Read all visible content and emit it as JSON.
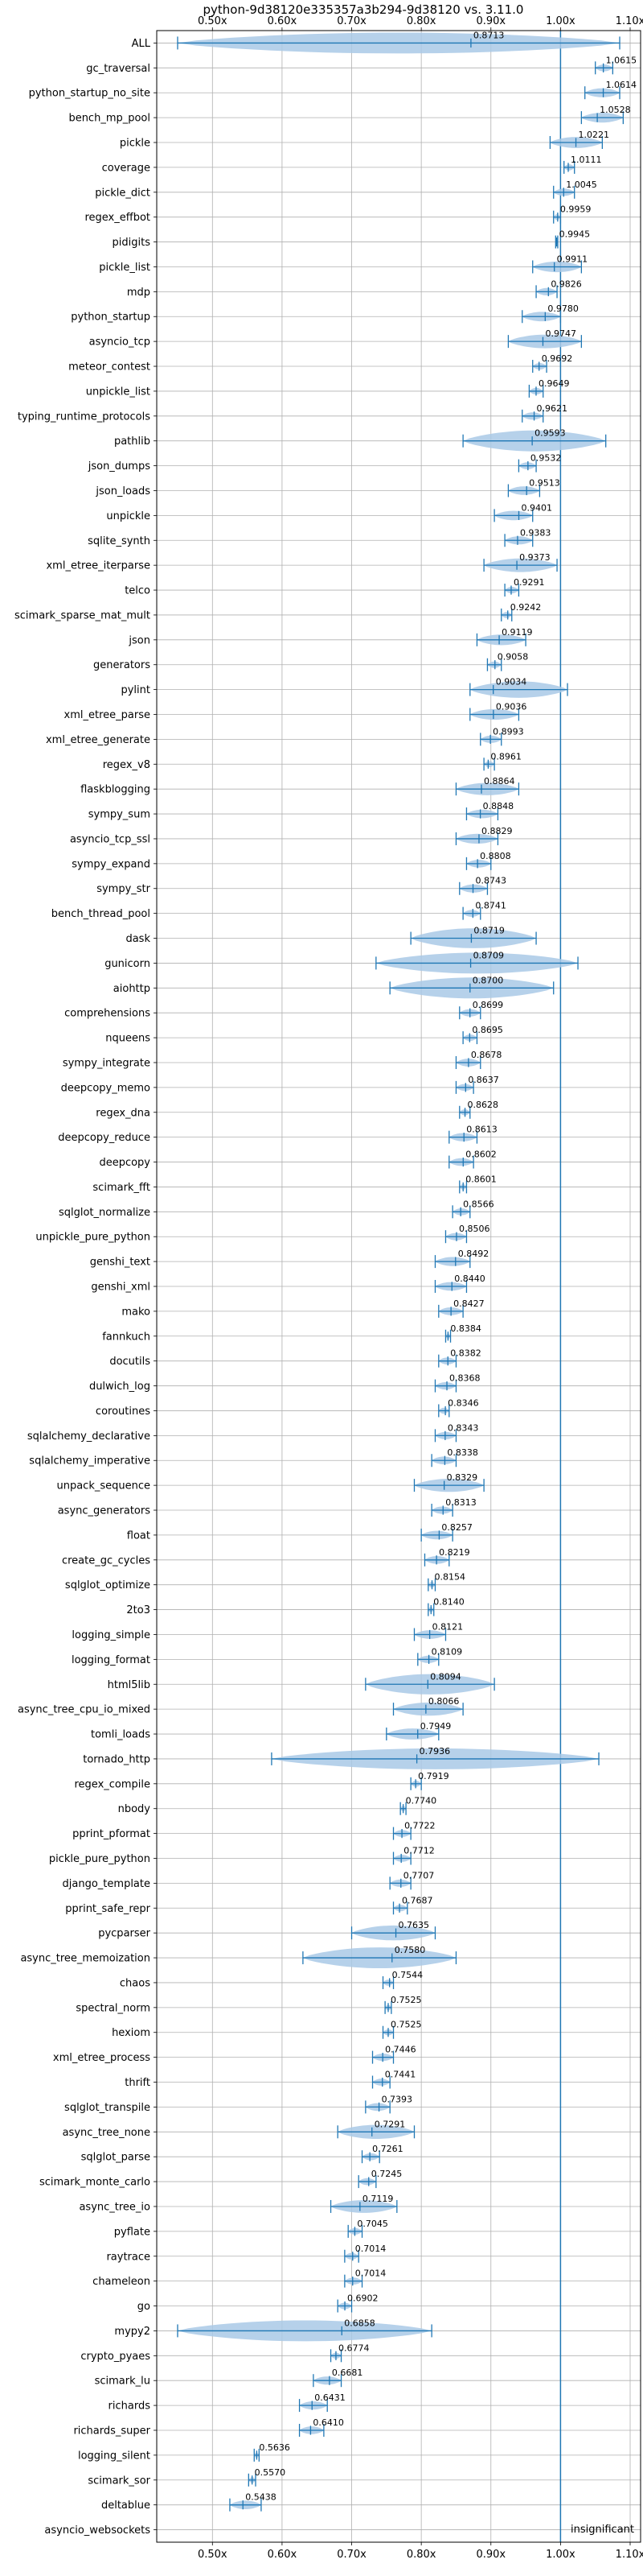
{
  "chart_data": {
    "type": "violin",
    "title": "python-9d38120e335357a3b294-9d38120 vs. 3.11.0",
    "xlabel": "",
    "ylabel": "",
    "xlim": [
      0.42,
      1.115
    ],
    "x_ticks": [
      0.5,
      0.6,
      0.7,
      0.8,
      0.9,
      1.0,
      1.1
    ],
    "x_tick_labels": [
      "0.50x",
      "0.60x",
      "0.70x",
      "0.80x",
      "0.90x",
      "1.00x",
      "1.10x"
    ],
    "reference_line": 1.0,
    "grid": true,
    "annotation": "insignificant",
    "benchmarks": [
      {
        "name": "ALL",
        "value": 0.8713,
        "label": "0.8713",
        "min": 0.45,
        "max": 1.085
      },
      {
        "name": "gc_traversal",
        "value": 1.0615,
        "label": "1.0615",
        "min": 1.05,
        "max": 1.075
      },
      {
        "name": "python_startup_no_site",
        "value": 1.0614,
        "label": "1.0614",
        "min": 1.035,
        "max": 1.085
      },
      {
        "name": "bench_mp_pool",
        "value": 1.0528,
        "label": "1.0528",
        "min": 1.03,
        "max": 1.09
      },
      {
        "name": "pickle",
        "value": 1.0221,
        "label": "1.0221",
        "min": 0.985,
        "max": 1.06
      },
      {
        "name": "coverage",
        "value": 1.0111,
        "label": "1.0111",
        "min": 1.005,
        "max": 1.02
      },
      {
        "name": "pickle_dict",
        "value": 1.0045,
        "label": "1.0045",
        "min": 0.99,
        "max": 1.02
      },
      {
        "name": "regex_effbot",
        "value": 0.9959,
        "label": "0.9959",
        "min": 0.99,
        "max": 1.0
      },
      {
        "name": "pidigits",
        "value": 0.9945,
        "label": "0.9945",
        "min": 0.993,
        "max": 0.996
      },
      {
        "name": "pickle_list",
        "value": 0.9911,
        "label": "0.9911",
        "min": 0.96,
        "max": 1.03
      },
      {
        "name": "mdp",
        "value": 0.9826,
        "label": "0.9826",
        "min": 0.965,
        "max": 0.995
      },
      {
        "name": "python_startup",
        "value": 0.978,
        "label": "0.9780",
        "min": 0.945,
        "max": 1.0
      },
      {
        "name": "asyncio_tcp",
        "value": 0.9747,
        "label": "0.9747",
        "min": 0.925,
        "max": 1.03
      },
      {
        "name": "meteor_contest",
        "value": 0.9692,
        "label": "0.9692",
        "min": 0.96,
        "max": 0.98
      },
      {
        "name": "unpickle_list",
        "value": 0.9649,
        "label": "0.9649",
        "min": 0.955,
        "max": 0.975
      },
      {
        "name": "typing_runtime_protocols",
        "value": 0.9621,
        "label": "0.9621",
        "min": 0.945,
        "max": 0.975
      },
      {
        "name": "pathlib",
        "value": 0.9593,
        "label": "0.9593",
        "min": 0.86,
        "max": 1.065
      },
      {
        "name": "json_dumps",
        "value": 0.9532,
        "label": "0.9532",
        "min": 0.94,
        "max": 0.965
      },
      {
        "name": "json_loads",
        "value": 0.9513,
        "label": "0.9513",
        "min": 0.925,
        "max": 0.97
      },
      {
        "name": "unpickle",
        "value": 0.9401,
        "label": "0.9401",
        "min": 0.905,
        "max": 0.96
      },
      {
        "name": "sqlite_synth",
        "value": 0.9383,
        "label": "0.9383",
        "min": 0.92,
        "max": 0.96
      },
      {
        "name": "xml_etree_iterparse",
        "value": 0.9373,
        "label": "0.9373",
        "min": 0.89,
        "max": 0.995
      },
      {
        "name": "telco",
        "value": 0.9291,
        "label": "0.9291",
        "min": 0.92,
        "max": 0.94
      },
      {
        "name": "scimark_sparse_mat_mult",
        "value": 0.9242,
        "label": "0.9242",
        "min": 0.915,
        "max": 0.93
      },
      {
        "name": "json",
        "value": 0.9119,
        "label": "0.9119",
        "min": 0.88,
        "max": 0.95
      },
      {
        "name": "generators",
        "value": 0.9058,
        "label": "0.9058",
        "min": 0.895,
        "max": 0.915
      },
      {
        "name": "pylint",
        "value": 0.9034,
        "label": "0.9034",
        "min": 0.87,
        "max": 1.01
      },
      {
        "name": "xml_etree_parse",
        "value": 0.9036,
        "label": "0.9036",
        "min": 0.87,
        "max": 0.94
      },
      {
        "name": "xml_etree_generate",
        "value": 0.8993,
        "label": "0.8993",
        "min": 0.885,
        "max": 0.915
      },
      {
        "name": "regex_v8",
        "value": 0.8961,
        "label": "0.8961",
        "min": 0.89,
        "max": 0.905
      },
      {
        "name": "flaskblogging",
        "value": 0.8864,
        "label": "0.8864",
        "min": 0.85,
        "max": 0.94
      },
      {
        "name": "sympy_sum",
        "value": 0.8848,
        "label": "0.8848",
        "min": 0.865,
        "max": 0.91
      },
      {
        "name": "asyncio_tcp_ssl",
        "value": 0.8829,
        "label": "0.8829",
        "min": 0.85,
        "max": 0.91
      },
      {
        "name": "sympy_expand",
        "value": 0.8808,
        "label": "0.8808",
        "min": 0.865,
        "max": 0.9
      },
      {
        "name": "sympy_str",
        "value": 0.8743,
        "label": "0.8743",
        "min": 0.855,
        "max": 0.895
      },
      {
        "name": "bench_thread_pool",
        "value": 0.8741,
        "label": "0.8741",
        "min": 0.86,
        "max": 0.885
      },
      {
        "name": "dask",
        "value": 0.8719,
        "label": "0.8719",
        "min": 0.785,
        "max": 0.965
      },
      {
        "name": "gunicorn",
        "value": 0.8709,
        "label": "0.8709",
        "min": 0.735,
        "max": 1.025
      },
      {
        "name": "aiohttp",
        "value": 0.87,
        "label": "0.8700",
        "min": 0.755,
        "max": 0.99
      },
      {
        "name": "comprehensions",
        "value": 0.8699,
        "label": "0.8699",
        "min": 0.855,
        "max": 0.885
      },
      {
        "name": "nqueens",
        "value": 0.8695,
        "label": "0.8695",
        "min": 0.86,
        "max": 0.88
      },
      {
        "name": "sympy_integrate",
        "value": 0.8678,
        "label": "0.8678",
        "min": 0.85,
        "max": 0.885
      },
      {
        "name": "deepcopy_memo",
        "value": 0.8637,
        "label": "0.8637",
        "min": 0.85,
        "max": 0.875
      },
      {
        "name": "regex_dna",
        "value": 0.8628,
        "label": "0.8628",
        "min": 0.855,
        "max": 0.87
      },
      {
        "name": "deepcopy_reduce",
        "value": 0.8613,
        "label": "0.8613",
        "min": 0.84,
        "max": 0.88
      },
      {
        "name": "deepcopy",
        "value": 0.8602,
        "label": "0.8602",
        "min": 0.84,
        "max": 0.875
      },
      {
        "name": "scimark_fft",
        "value": 0.8601,
        "label": "0.8601",
        "min": 0.855,
        "max": 0.865
      },
      {
        "name": "sqlglot_normalize",
        "value": 0.8566,
        "label": "0.8566",
        "min": 0.845,
        "max": 0.87
      },
      {
        "name": "unpickle_pure_python",
        "value": 0.8506,
        "label": "0.8506",
        "min": 0.835,
        "max": 0.865
      },
      {
        "name": "genshi_text",
        "value": 0.8492,
        "label": "0.8492",
        "min": 0.82,
        "max": 0.87
      },
      {
        "name": "genshi_xml",
        "value": 0.844,
        "label": "0.8440",
        "min": 0.82,
        "max": 0.865
      },
      {
        "name": "mako",
        "value": 0.8427,
        "label": "0.8427",
        "min": 0.825,
        "max": 0.86
      },
      {
        "name": "fannkuch",
        "value": 0.8384,
        "label": "0.8384",
        "min": 0.835,
        "max": 0.842
      },
      {
        "name": "docutils",
        "value": 0.8382,
        "label": "0.8382",
        "min": 0.825,
        "max": 0.85
      },
      {
        "name": "dulwich_log",
        "value": 0.8368,
        "label": "0.8368",
        "min": 0.82,
        "max": 0.85
      },
      {
        "name": "coroutines",
        "value": 0.8346,
        "label": "0.8346",
        "min": 0.825,
        "max": 0.84
      },
      {
        "name": "sqlalchemy_declarative",
        "value": 0.8343,
        "label": "0.8343",
        "min": 0.82,
        "max": 0.85
      },
      {
        "name": "sqlalchemy_imperative",
        "value": 0.8338,
        "label": "0.8338",
        "min": 0.815,
        "max": 0.85
      },
      {
        "name": "unpack_sequence",
        "value": 0.8329,
        "label": "0.8329",
        "min": 0.79,
        "max": 0.89
      },
      {
        "name": "async_generators",
        "value": 0.8313,
        "label": "0.8313",
        "min": 0.815,
        "max": 0.845
      },
      {
        "name": "float",
        "value": 0.8257,
        "label": "0.8257",
        "min": 0.8,
        "max": 0.845
      },
      {
        "name": "create_gc_cycles",
        "value": 0.8219,
        "label": "0.8219",
        "min": 0.805,
        "max": 0.84
      },
      {
        "name": "sqlglot_optimize",
        "value": 0.8154,
        "label": "0.8154",
        "min": 0.81,
        "max": 0.82
      },
      {
        "name": "2to3",
        "value": 0.814,
        "label": "0.8140",
        "min": 0.81,
        "max": 0.818
      },
      {
        "name": "logging_simple",
        "value": 0.8121,
        "label": "0.8121",
        "min": 0.79,
        "max": 0.835
      },
      {
        "name": "logging_format",
        "value": 0.8109,
        "label": "0.8109",
        "min": 0.795,
        "max": 0.825
      },
      {
        "name": "html5lib",
        "value": 0.8094,
        "label": "0.8094",
        "min": 0.72,
        "max": 0.905
      },
      {
        "name": "async_tree_cpu_io_mixed",
        "value": 0.8066,
        "label": "0.8066",
        "min": 0.76,
        "max": 0.86
      },
      {
        "name": "tomli_loads",
        "value": 0.7949,
        "label": "0.7949",
        "min": 0.75,
        "max": 0.825
      },
      {
        "name": "tornado_http",
        "value": 0.7936,
        "label": "0.7936",
        "min": 0.585,
        "max": 1.055
      },
      {
        "name": "regex_compile",
        "value": 0.7919,
        "label": "0.7919",
        "min": 0.785,
        "max": 0.8
      },
      {
        "name": "nbody",
        "value": 0.774,
        "label": "0.7740",
        "min": 0.77,
        "max": 0.778
      },
      {
        "name": "pprint_pformat",
        "value": 0.7722,
        "label": "0.7722",
        "min": 0.76,
        "max": 0.785
      },
      {
        "name": "pickle_pure_python",
        "value": 0.7712,
        "label": "0.7712",
        "min": 0.76,
        "max": 0.785
      },
      {
        "name": "django_template",
        "value": 0.7707,
        "label": "0.7707",
        "min": 0.755,
        "max": 0.785
      },
      {
        "name": "pprint_safe_repr",
        "value": 0.7687,
        "label": "0.7687",
        "min": 0.76,
        "max": 0.78
      },
      {
        "name": "pycparser",
        "value": 0.7635,
        "label": "0.7635",
        "min": 0.7,
        "max": 0.82
      },
      {
        "name": "async_tree_memoization",
        "value": 0.758,
        "label": "0.7580",
        "min": 0.63,
        "max": 0.85
      },
      {
        "name": "chaos",
        "value": 0.7544,
        "label": "0.7544",
        "min": 0.745,
        "max": 0.76
      },
      {
        "name": "spectral_norm",
        "value": 0.7525,
        "label": "0.7525",
        "min": 0.748,
        "max": 0.757
      },
      {
        "name": "hexiom",
        "value": 0.7525,
        "label": "0.7525",
        "min": 0.745,
        "max": 0.76
      },
      {
        "name": "xml_etree_process",
        "value": 0.7446,
        "label": "0.7446",
        "min": 0.73,
        "max": 0.76
      },
      {
        "name": "thrift",
        "value": 0.7441,
        "label": "0.7441",
        "min": 0.73,
        "max": 0.755
      },
      {
        "name": "sqlglot_transpile",
        "value": 0.7393,
        "label": "0.7393",
        "min": 0.72,
        "max": 0.755
      },
      {
        "name": "async_tree_none",
        "value": 0.7291,
        "label": "0.7291",
        "min": 0.68,
        "max": 0.79
      },
      {
        "name": "sqlglot_parse",
        "value": 0.7261,
        "label": "0.7261",
        "min": 0.715,
        "max": 0.74
      },
      {
        "name": "scimark_monte_carlo",
        "value": 0.7245,
        "label": "0.7245",
        "min": 0.71,
        "max": 0.735
      },
      {
        "name": "async_tree_io",
        "value": 0.7119,
        "label": "0.7119",
        "min": 0.67,
        "max": 0.765
      },
      {
        "name": "pyflate",
        "value": 0.7045,
        "label": "0.7045",
        "min": 0.695,
        "max": 0.715
      },
      {
        "name": "raytrace",
        "value": 0.7014,
        "label": "0.7014",
        "min": 0.69,
        "max": 0.71
      },
      {
        "name": "chameleon",
        "value": 0.7014,
        "label": "0.7014",
        "min": 0.69,
        "max": 0.715
      },
      {
        "name": "go",
        "value": 0.6902,
        "label": "0.6902",
        "min": 0.68,
        "max": 0.7
      },
      {
        "name": "mypy2",
        "value": 0.6858,
        "label": "0.6858",
        "min": 0.45,
        "max": 0.815
      },
      {
        "name": "crypto_pyaes",
        "value": 0.6774,
        "label": "0.6774",
        "min": 0.67,
        "max": 0.685
      },
      {
        "name": "scimark_lu",
        "value": 0.6681,
        "label": "0.6681",
        "min": 0.645,
        "max": 0.685
      },
      {
        "name": "richards",
        "value": 0.6431,
        "label": "0.6431",
        "min": 0.625,
        "max": 0.665
      },
      {
        "name": "richards_super",
        "value": 0.641,
        "label": "0.6410",
        "min": 0.625,
        "max": 0.66
      },
      {
        "name": "logging_silent",
        "value": 0.5636,
        "label": "0.5636",
        "min": 0.56,
        "max": 0.567
      },
      {
        "name": "scimark_sor",
        "value": 0.557,
        "label": "0.5570",
        "min": 0.552,
        "max": 0.562
      },
      {
        "name": "deltablue",
        "value": 0.5438,
        "label": "0.5438",
        "min": 0.525,
        "max": 0.57
      },
      {
        "name": "asyncio_websockets",
        "value": null,
        "label": "",
        "min": null,
        "max": null
      }
    ]
  }
}
